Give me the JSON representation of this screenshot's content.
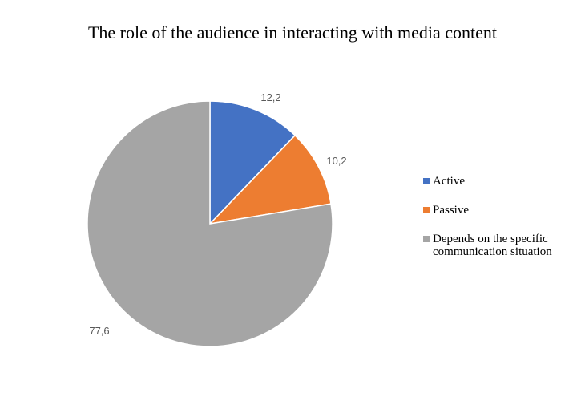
{
  "chart_data": {
    "type": "pie",
    "title": "The role of the audience in interacting with media content",
    "slices": [
      {
        "name": "Active",
        "value": 12.2,
        "label": "12,2",
        "color": "#4472C4"
      },
      {
        "name": "Passive",
        "value": 10.2,
        "label": "10,2",
        "color": "#ED7D31"
      },
      {
        "name": "Depends on the specific communication situation",
        "value": 77.6,
        "label": "77,6",
        "color": "#A5A5A5"
      }
    ],
    "legend_position": "right"
  }
}
